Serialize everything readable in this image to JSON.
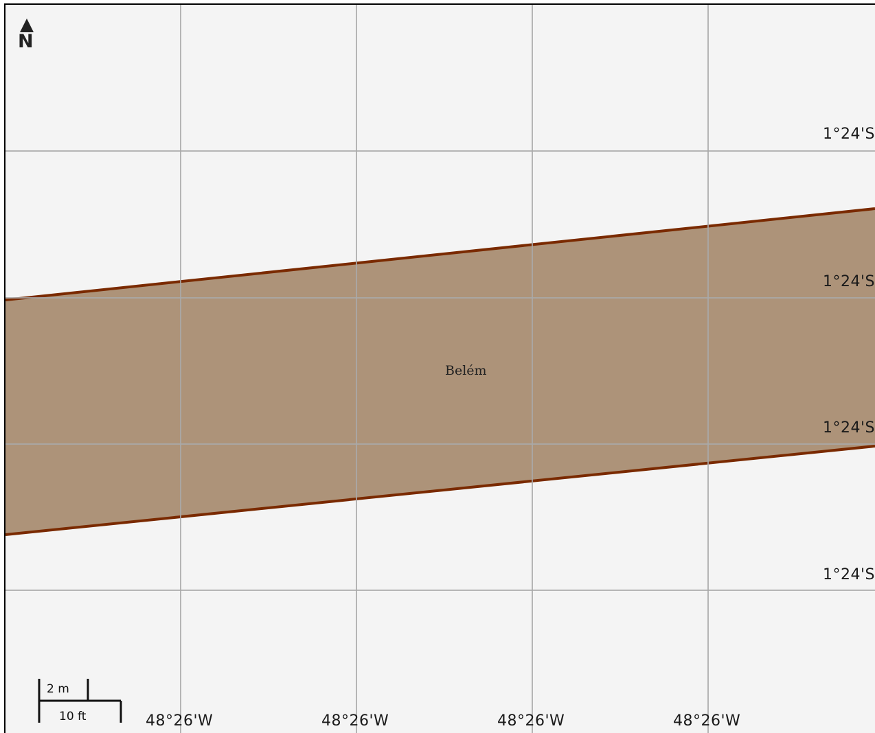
{
  "map": {
    "place_name": "Belém",
    "north_indicator": "N",
    "north_icon": "north-arrow-icon",
    "latitude_labels": [
      "1°24'S",
      "1°24'S",
      "1°24'S",
      "1°24'S"
    ],
    "longitude_labels": [
      "48°26'W",
      "48°26'W",
      "48°26'W",
      "48°26'W"
    ],
    "scale": {
      "metric": "2 m",
      "imperial": "10 ft"
    },
    "colors": {
      "background": "#f4f4f4",
      "feature_fill": "#ad9379",
      "feature_outline": "#7a2a00",
      "grid": "#a9a9a9"
    }
  }
}
